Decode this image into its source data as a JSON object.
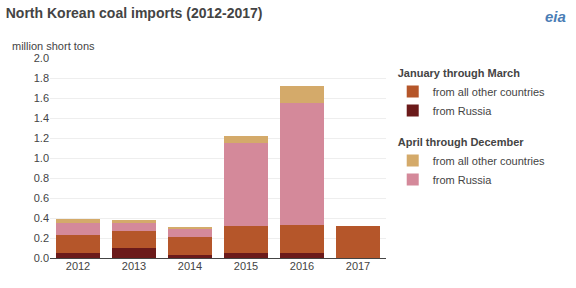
{
  "chart_data": {
    "type": "bar",
    "title": "North Korean coal imports (2012-2017)",
    "ylabel": "million short tons",
    "annotations": [
      "January through March",
      "April through December",
      "eia"
    ],
    "categories": [
      "2012",
      "2013",
      "2014",
      "2015",
      "2016",
      "2017"
    ],
    "series": [
      {
        "name": "from Russia",
        "color": "#6B1A1A",
        "values": [
          0.05,
          0.1,
          0.03,
          0.05,
          0.05,
          0.0
        ]
      },
      {
        "name": "from all other countries",
        "color": "#B5562A",
        "values": [
          0.18,
          0.17,
          0.18,
          0.27,
          0.28,
          0.32
        ]
      },
      {
        "name": "from Russia",
        "color": "#D4899A",
        "values": [
          0.12,
          0.08,
          0.08,
          0.83,
          1.22,
          0.0
        ]
      },
      {
        "name": "from all other countries",
        "color": "#D4AA6A",
        "values": [
          0.04,
          0.03,
          0.02,
          0.07,
          0.17,
          0.0
        ]
      }
    ],
    "stacked": true,
    "ylim": [
      0,
      2.0
    ],
    "yticks": [
      {
        "value": 0.0,
        "label": "0.0"
      },
      0.2,
      0.4,
      0.6,
      0.8,
      {
        "value": 1.0,
        "label": "1.0"
      },
      1.2,
      1.4,
      1.6,
      1.8,
      {
        "value": 2.0,
        "label": "2.0"
      }
    ],
    "grid": true,
    "legend": "right"
  }
}
